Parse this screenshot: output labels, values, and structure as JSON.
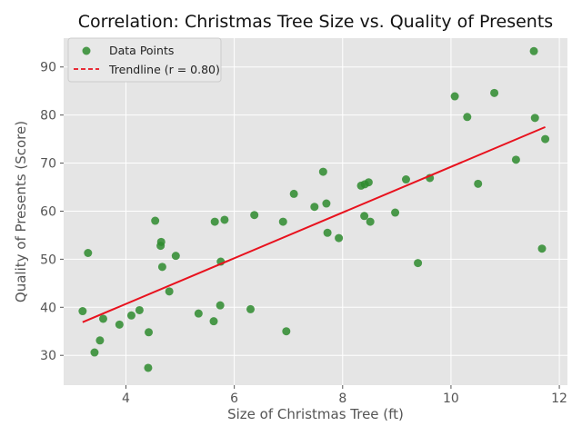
{
  "chart_data": {
    "type": "scatter",
    "title": "Correlation: Christmas Tree Size vs. Quality of Presents",
    "xlabel": "Size of Christmas Tree (ft)",
    "ylabel": "Quality of Presents (Score)",
    "xlim": [
      2.85,
      12.15
    ],
    "ylim": [
      23.8,
      96.0
    ],
    "xticks": [
      4,
      6,
      8,
      10,
      12
    ],
    "yticks": [
      30,
      40,
      50,
      60,
      70,
      80,
      90
    ],
    "grid": true,
    "legend_position": "top-left",
    "colors": {
      "points": "#2e8b2e",
      "trendline": "#e8121e",
      "background": "#e5e5e5",
      "grid": "#ffffff"
    },
    "series": [
      {
        "name": "Data Points",
        "kind": "scatter",
        "x": [
          3.2,
          3.3,
          3.42,
          3.52,
          3.58,
          3.88,
          4.1,
          4.25,
          4.41,
          4.42,
          4.54,
          4.64,
          4.65,
          4.67,
          4.8,
          4.92,
          5.34,
          5.62,
          5.64,
          5.74,
          5.75,
          5.82,
          6.3,
          6.37,
          6.9,
          6.96,
          7.1,
          7.48,
          7.64,
          7.7,
          7.72,
          7.93,
          8.34,
          8.4,
          8.41,
          8.48,
          8.51,
          8.97,
          9.17,
          9.39,
          9.61,
          10.07,
          10.3,
          10.5,
          10.8,
          11.2,
          11.53,
          11.55,
          11.68,
          11.74
        ],
        "y": [
          39.2,
          51.3,
          30.6,
          33.1,
          37.6,
          36.4,
          38.3,
          39.4,
          27.4,
          34.8,
          58.0,
          52.8,
          53.6,
          48.4,
          43.3,
          50.7,
          38.7,
          37.1,
          57.8,
          40.4,
          49.5,
          58.2,
          39.6,
          59.2,
          57.8,
          35.0,
          63.6,
          60.9,
          68.2,
          61.6,
          55.5,
          54.4,
          65.3,
          59.0,
          65.6,
          66.0,
          57.8,
          59.7,
          66.6,
          49.2,
          66.9,
          83.9,
          79.6,
          65.7,
          84.6,
          70.7,
          93.3,
          79.4,
          52.2,
          75.0
        ]
      },
      {
        "name": "Trendline (r = 0.80)",
        "kind": "line",
        "x": [
          3.2,
          11.74
        ],
        "y": [
          36.9,
          77.5
        ]
      }
    ]
  }
}
